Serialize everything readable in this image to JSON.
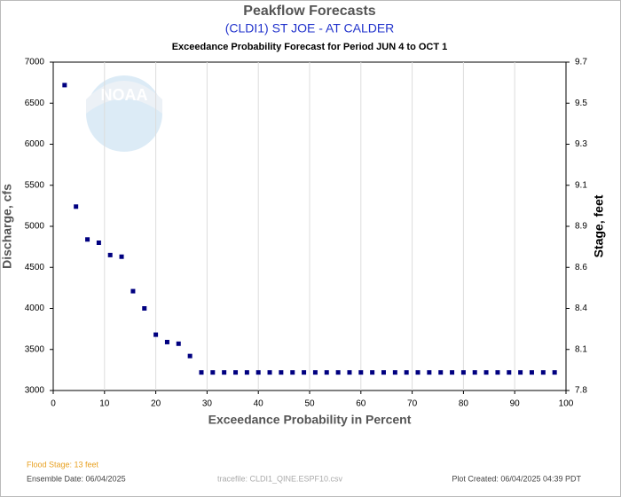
{
  "chart_data": {
    "type": "scatter",
    "title": "Peakflow Forecasts",
    "subtitle": "(CLDI1) ST JOE - AT CALDER",
    "chart_title": "Exceedance Probability Forecast for Period JUN 4 to OCT 1",
    "x_label": "Exceedance Probability in Percent",
    "y_label": "Discharge, cfs",
    "y2_label": "Stage, feet",
    "xlim": [
      0,
      100
    ],
    "xticks": [
      0,
      10,
      20,
      30,
      40,
      50,
      60,
      70,
      80,
      90,
      100
    ],
    "ylim": [
      3000,
      7000
    ],
    "yticks": [
      3000,
      3500,
      4000,
      4500,
      5000,
      5500,
      6000,
      6500,
      7000
    ],
    "y2ticks": [
      7.8,
      8.1,
      8.4,
      8.6,
      8.9,
      9.1,
      9.3,
      9.5,
      9.7
    ],
    "grid": true,
    "series": [
      {
        "color": "#000080",
        "x": [
          2.22,
          4.44,
          6.67,
          8.89,
          11.11,
          13.33,
          15.56,
          17.78,
          20,
          22.22,
          24.44,
          26.67,
          28.89,
          31.11,
          33.33,
          35.56,
          37.78,
          40,
          42.22,
          44.44,
          46.67,
          48.89,
          51.11,
          53.33,
          55.56,
          57.78,
          60,
          62.22,
          64.44,
          66.67,
          68.89,
          71.11,
          73.33,
          75.56,
          77.78,
          80,
          82.22,
          84.44,
          86.67,
          88.89,
          91.11,
          93.33,
          95.56,
          97.78
        ],
        "values": [
          6720,
          5240,
          4840,
          4800,
          4650,
          4630,
          4210,
          4000,
          3680,
          3590,
          3570,
          3420,
          3220,
          3220,
          3220,
          3220,
          3220,
          3220,
          3220,
          3220,
          3220,
          3220,
          3220,
          3220,
          3220,
          3220,
          3220,
          3220,
          3220,
          3220,
          3220,
          3220,
          3220,
          3220,
          3220,
          3220,
          3220,
          3220,
          3220,
          3220,
          3220,
          3220,
          3220,
          3220
        ]
      }
    ],
    "footer": {
      "flood_stage": "Flood Stage: 13 feet",
      "ensemble_date": "Ensemble Date: 06/04/2025",
      "tracefile": "tracefile: CLDI1_QINE.ESPF10.csv",
      "plot_created": "Plot Created: 06/04/2025 04:39 PDT"
    }
  }
}
